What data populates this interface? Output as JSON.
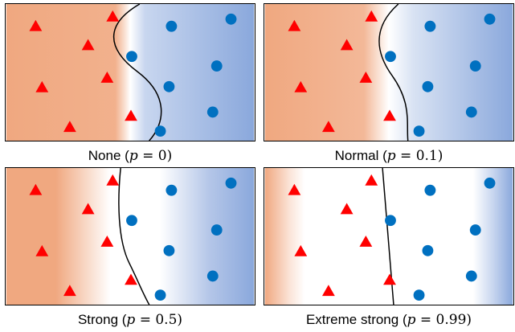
{
  "colors": {
    "triangle": "#ff0000",
    "circle": "#0070c0",
    "orange": "#f0a880",
    "blue": "#8aa8dc",
    "boundary": "#000000"
  },
  "icons": {
    "class_a": "red-triangle",
    "class_b": "blue-circle"
  },
  "panels": [
    {
      "id": "none",
      "caption_prefix": "None (",
      "caption_var": "p",
      "caption_eq": " = 0)",
      "gradient": {
        "white_from": 0.44,
        "white_to": 0.56
      }
    },
    {
      "id": "normal",
      "caption_prefix": "Normal (",
      "caption_var": "p",
      "caption_eq": " = 0.1)",
      "gradient": {
        "white_from": 0.46,
        "white_to": 0.58
      }
    },
    {
      "id": "strong",
      "caption_prefix": "Strong (",
      "caption_var": "p",
      "caption_eq": " = 0.5)",
      "gradient": {
        "white_from": 0.32,
        "white_to": 0.72
      }
    },
    {
      "id": "extreme",
      "caption_prefix": "Extreme strong (",
      "caption_var": "p",
      "caption_eq": " = 0.99)",
      "gradient": {
        "white_from": 0.12,
        "white_to": 0.88
      }
    }
  ]
}
